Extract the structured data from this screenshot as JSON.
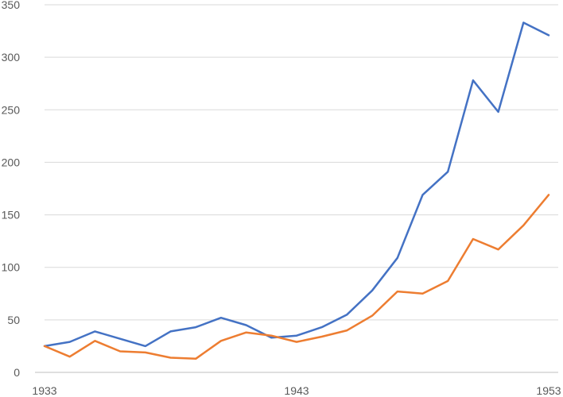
{
  "chart_data": {
    "type": "line",
    "x": [
      1933,
      1934,
      1935,
      1936,
      1937,
      1938,
      1939,
      1940,
      1941,
      1942,
      1943,
      1944,
      1945,
      1946,
      1947,
      1948,
      1949,
      1950,
      1951,
      1952,
      1953
    ],
    "series": [
      {
        "color": "#4472C4",
        "values": [
          25,
          29,
          39,
          32,
          25,
          39,
          43,
          52,
          45,
          33,
          35,
          43,
          55,
          78,
          109,
          169,
          191,
          278,
          248,
          333,
          321
        ]
      },
      {
        "color": "#ED7D31",
        "values": [
          25,
          15,
          30,
          20,
          19,
          14,
          13,
          30,
          38,
          35,
          29,
          34,
          40,
          54,
          77,
          75,
          87,
          127,
          117,
          140,
          169
        ]
      }
    ],
    "xticks": [
      1933,
      1943,
      1953
    ],
    "xtick_labels": [
      "1933",
      "1943",
      "1953"
    ],
    "yticks": [
      0,
      50,
      100,
      150,
      200,
      250,
      300,
      350
    ],
    "ytick_labels": [
      "0",
      "50",
      "100",
      "150",
      "200",
      "250",
      "300",
      "350"
    ],
    "ylim": [
      0,
      350
    ],
    "xlim": [
      1933,
      1953
    ],
    "grid": true,
    "legend": "none",
    "title": "",
    "xlabel": "",
    "ylabel": ""
  }
}
